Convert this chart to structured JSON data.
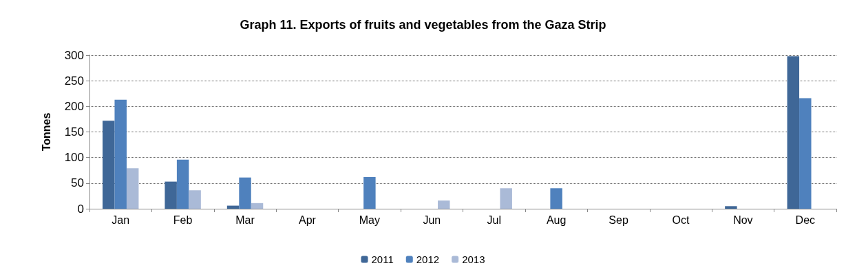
{
  "chart_data": {
    "type": "bar",
    "title": "Graph 11. Exports of fruits and vegetables from the Gaza Strip",
    "ylabel": "Tonnes",
    "categories": [
      "Jan",
      "Feb",
      "Mar",
      "Apr",
      "May",
      "Jun",
      "Jul",
      "Aug",
      "Sep",
      "Oct",
      "Nov",
      "Dec"
    ],
    "series": [
      {
        "name": "2011",
        "color": "#3f6797",
        "values": [
          172,
          53,
          6,
          0,
          0,
          0,
          0,
          0,
          0,
          0,
          5,
          298
        ]
      },
      {
        "name": "2012",
        "color": "#4f81bd",
        "values": [
          213,
          96,
          61,
          0,
          62,
          0,
          0,
          40,
          0,
          0,
          0,
          216
        ]
      },
      {
        "name": "2013",
        "color": "#aabad7",
        "values": [
          79,
          36,
          11,
          0,
          0,
          16,
          40,
          0,
          0,
          0,
          0,
          0
        ]
      }
    ],
    "ylim": [
      0,
      300
    ],
    "yticks": [
      0,
      50,
      100,
      150,
      200,
      250,
      300
    ],
    "grid": "y",
    "legend": "bottom"
  }
}
